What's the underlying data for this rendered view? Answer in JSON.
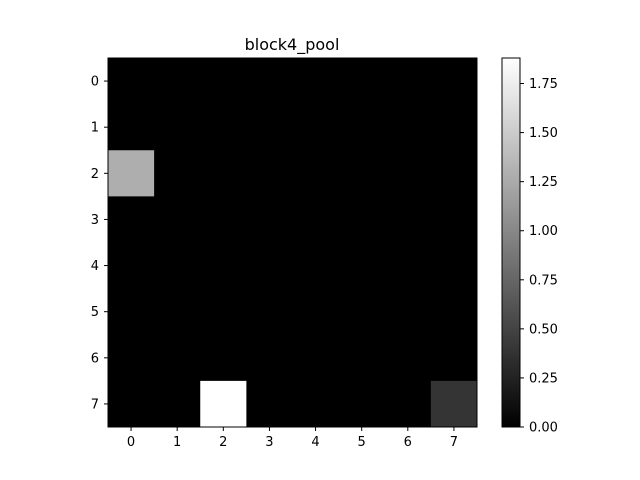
{
  "chart_data": {
    "type": "heatmap",
    "title": "block4_pool",
    "xlabel": "",
    "ylabel": "",
    "x_ticks": [
      "0",
      "1",
      "2",
      "3",
      "4",
      "5",
      "6",
      "7"
    ],
    "y_ticks": [
      "0",
      "1",
      "2",
      "3",
      "4",
      "5",
      "6",
      "7"
    ],
    "colormap": "gray",
    "vmin": 0.0,
    "vmax": 1.88,
    "colorbar_ticks": [
      "0.00",
      "0.25",
      "0.50",
      "0.75",
      "1.00",
      "1.25",
      "1.50",
      "1.75"
    ],
    "colorbar_tick_values": [
      0.0,
      0.25,
      0.5,
      0.75,
      1.0,
      1.25,
      1.5,
      1.75
    ],
    "values": [
      [
        0,
        0,
        0,
        0,
        0,
        0,
        0,
        0
      ],
      [
        0,
        0,
        0,
        0,
        0,
        0,
        0,
        0
      ],
      [
        1.28,
        0,
        0,
        0,
        0,
        0,
        0,
        0
      ],
      [
        0,
        0,
        0,
        0,
        0,
        0,
        0,
        0
      ],
      [
        0,
        0,
        0,
        0,
        0,
        0,
        0,
        0
      ],
      [
        0,
        0,
        0,
        0,
        0,
        0,
        0,
        0
      ],
      [
        0,
        0,
        0,
        0,
        0,
        0,
        0,
        0
      ],
      [
        0,
        0,
        1.88,
        0,
        0,
        0,
        0,
        0.38
      ]
    ]
  }
}
